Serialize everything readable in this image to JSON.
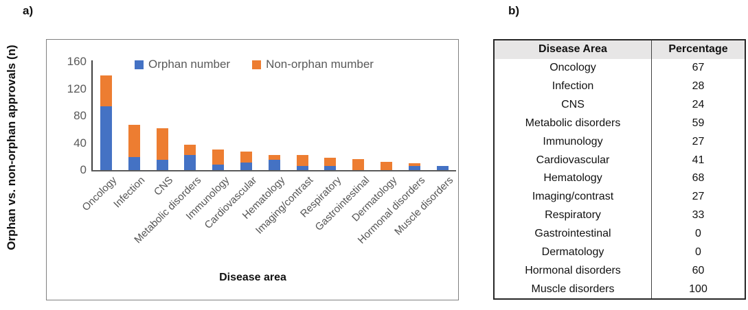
{
  "panel_a_label": "a)",
  "panel_b_label": "b)",
  "chart_data": {
    "type": "bar",
    "stacked": true,
    "xlabel": "Disease area",
    "ylabel": "Orphan vs. non-orphan approvals (n)",
    "ylim": [
      0,
      160
    ],
    "yticks": [
      0,
      40,
      80,
      120,
      160
    ],
    "grid": false,
    "legend_position": "top-inside",
    "categories": [
      "Oncology",
      "Infection",
      "CNS",
      "Metabolic disorders",
      "Immunology",
      "Cardiovascular",
      "Hematology",
      "Imaging/contrast",
      "Respiratory",
      "Gastrointestinal",
      "Dermatology",
      "Hormonal disorders",
      "Muscle disorders"
    ],
    "series": [
      {
        "name": "Orphan number",
        "color": "#4472C4",
        "values": [
          94,
          19,
          15,
          22,
          8,
          11,
          15,
          6,
          6,
          0,
          0,
          6,
          6
        ]
      },
      {
        "name": "Non-orphan mumber",
        "color": "#ED7D31",
        "values": [
          46,
          48,
          47,
          15,
          22,
          16,
          7,
          16,
          12,
          16,
          12,
          4,
          0
        ]
      }
    ],
    "totals": [
      140,
      67,
      62,
      37,
      30,
      27,
      22,
      22,
      18,
      16,
      12,
      10,
      6
    ]
  },
  "table": {
    "headers": [
      "Disease Area",
      "Percentage"
    ],
    "rows": [
      {
        "area": "Oncology",
        "pct": "67"
      },
      {
        "area": "Infection",
        "pct": "28"
      },
      {
        "area": "CNS",
        "pct": "24"
      },
      {
        "area": "Metabolic disorders",
        "pct": "59"
      },
      {
        "area": "Immunology",
        "pct": "27"
      },
      {
        "area": "Cardiovascular",
        "pct": "41"
      },
      {
        "area": "Hematology",
        "pct": "68"
      },
      {
        "area": "Imaging/contrast",
        "pct": "27"
      },
      {
        "area": "Respiratory",
        "pct": "33"
      },
      {
        "area": "Gastrointestinal",
        "pct": "0"
      },
      {
        "area": "Dermatology",
        "pct": "0"
      },
      {
        "area": "Hormonal disorders",
        "pct": "60"
      },
      {
        "area": "Muscle disorders",
        "pct": "100"
      }
    ]
  },
  "colors": {
    "orphan": "#4472C4",
    "non_orphan": "#ED7D31",
    "axis_text": "#595959",
    "table_header_bg": "#e7e6e6",
    "chart_border": "#7f7f7f"
  }
}
